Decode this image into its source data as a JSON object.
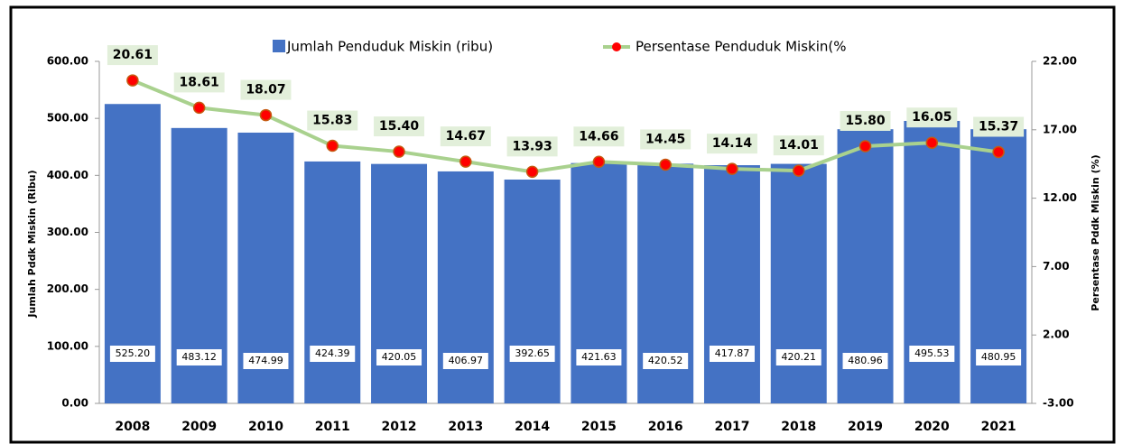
{
  "chart_data": {
    "type": "bar_line",
    "y_label": "Jumlah Pddk Miskin (Ribu)",
    "y2_label": "Persentase Pddk Miskin (%)",
    "categories": [
      "2008",
      "2009",
      "2010",
      "2011",
      "2012",
      "2013",
      "2014",
      "2015",
      "2016",
      "2017",
      "2018",
      "2019",
      "2020",
      "2021"
    ],
    "series": [
      {
        "name": "Jumlah Penduduk Miskin (ribu)",
        "type": "bar",
        "color": "#4472c4",
        "values": [
          525.2,
          483.12,
          474.99,
          424.39,
          420.05,
          406.97,
          392.65,
          421.63,
          420.52,
          417.87,
          420.21,
          480.96,
          495.53,
          480.95
        ],
        "value_labels": [
          "525.20",
          "483.12",
          "474.99",
          "424.39",
          "420.05",
          "406.97",
          "392.65",
          "421.63",
          "420.52",
          "417.87",
          "420.21",
          "480.96",
          "495.53",
          "480.95"
        ]
      },
      {
        "name": "Persentase Penduduk Miskin(%",
        "type": "line",
        "axis": "y2",
        "color": "#a9d18e",
        "marker_color": "#ff0000",
        "values": [
          20.61,
          18.61,
          18.07,
          15.83,
          15.4,
          14.67,
          13.93,
          14.66,
          14.45,
          14.14,
          14.01,
          15.8,
          16.05,
          15.37
        ],
        "value_labels": [
          "20.61",
          "18.61",
          "18.07",
          "15.83",
          "15.40",
          "14.67",
          "13.93",
          "14.66",
          "14.45",
          "14.14",
          "14.01",
          "15.80",
          "16.05",
          "15.37"
        ]
      }
    ],
    "ylim": [
      0,
      600
    ],
    "yticks": [
      {
        "value": 0,
        "label": "0.00"
      },
      {
        "value": 100,
        "label": "100.00"
      },
      {
        "value": 200,
        "label": "200.00"
      },
      {
        "value": 300,
        "label": "300.00"
      },
      {
        "value": 400,
        "label": "400.00"
      },
      {
        "value": 500,
        "label": "500.00"
      },
      {
        "value": 600,
        "label": "600.00"
      }
    ],
    "y2lim": [
      -3,
      22
    ],
    "y2ticks": [
      {
        "value": -3,
        "label": "-3.00"
      },
      {
        "value": 2,
        "label": "2.00"
      },
      {
        "value": 7,
        "label": "7.00"
      },
      {
        "value": 12,
        "label": "12.00"
      },
      {
        "value": 17,
        "label": "17.00"
      },
      {
        "value": 22,
        "label": "22.00"
      }
    ],
    "grid": false,
    "legend": "top"
  }
}
